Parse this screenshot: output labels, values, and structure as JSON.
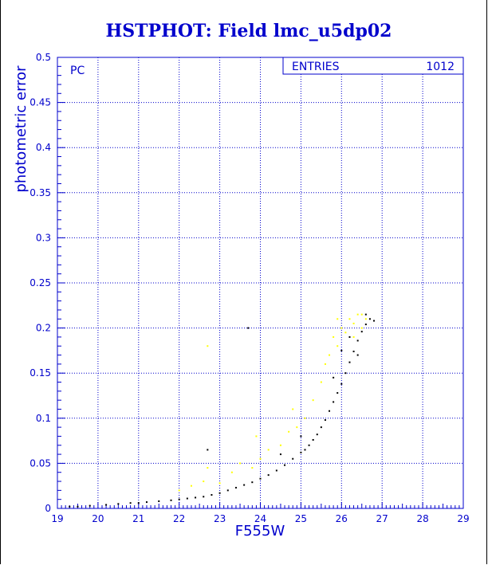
{
  "chart_data": {
    "type": "scatter",
    "title": "HSTPHOT: Field lmc_u5dp02",
    "xlabel": "F555W",
    "ylabel": "photometric error",
    "xlim": [
      19,
      29
    ],
    "ylim": [
      0,
      0.5
    ],
    "x_ticks": [
      "19",
      "20",
      "21",
      "22",
      "23",
      "24",
      "25",
      "26",
      "27",
      "28",
      "29"
    ],
    "y_ticks": [
      "0",
      "0.05",
      "0.1",
      "0.15",
      "0.2",
      "0.25",
      "0.3",
      "0.35",
      "0.4",
      "0.45",
      "0.5"
    ],
    "grid": true,
    "corner_label": "PC",
    "stats_box": {
      "label": "ENTRIES",
      "value": "1012"
    },
    "colors": {
      "axis": "#0000cc",
      "grid": "#0000cc",
      "series_main": "#000000",
      "series_secondary": "#ffff00"
    },
    "series": [
      {
        "color": "#000000",
        "x": [
          19.3,
          19.5,
          19.8,
          20.2,
          20.5,
          20.8,
          21.0,
          21.2,
          21.5,
          21.8,
          22.0,
          22.2,
          22.4,
          22.6,
          22.8,
          23.0,
          23.2,
          23.4,
          23.6,
          23.8,
          24.0,
          24.2,
          24.4,
          24.6,
          24.8,
          25.0,
          25.1,
          25.2,
          25.3,
          25.4,
          25.5,
          25.6,
          25.7,
          25.8,
          25.9,
          26.0,
          26.1,
          26.2,
          26.3,
          26.4,
          26.5,
          26.6,
          26.7,
          26.8,
          22.7,
          23.7,
          24.5,
          25.0,
          26.2,
          26.0,
          25.8,
          26.4,
          26.6
        ],
        "y": [
          0.002,
          0.002,
          0.003,
          0.004,
          0.005,
          0.006,
          0.006,
          0.007,
          0.008,
          0.009,
          0.01,
          0.011,
          0.012,
          0.013,
          0.015,
          0.017,
          0.02,
          0.023,
          0.026,
          0.029,
          0.033,
          0.037,
          0.042,
          0.048,
          0.055,
          0.062,
          0.065,
          0.07,
          0.076,
          0.082,
          0.09,
          0.098,
          0.108,
          0.118,
          0.128,
          0.138,
          0.15,
          0.162,
          0.174,
          0.186,
          0.196,
          0.204,
          0.21,
          0.208,
          0.065,
          0.2,
          0.06,
          0.08,
          0.19,
          0.175,
          0.145,
          0.17,
          0.215
        ]
      },
      {
        "color": "#ffff00",
        "x": [
          22.0,
          22.3,
          22.6,
          22.7,
          23.0,
          23.3,
          23.5,
          23.8,
          24.0,
          24.2,
          24.5,
          24.7,
          24.9,
          25.1,
          25.3,
          25.5,
          25.7,
          25.8,
          25.9,
          26.0,
          26.1,
          26.2,
          26.3,
          26.4,
          26.5,
          26.6,
          22.7,
          23.9,
          24.8,
          25.6,
          25.9,
          26.3,
          26.5
        ],
        "y": [
          0.02,
          0.025,
          0.03,
          0.18,
          0.028,
          0.04,
          0.05,
          0.045,
          0.055,
          0.065,
          0.07,
          0.085,
          0.09,
          0.1,
          0.12,
          0.14,
          0.17,
          0.19,
          0.18,
          0.2,
          0.195,
          0.21,
          0.205,
          0.215,
          0.2,
          0.21,
          0.045,
          0.08,
          0.11,
          0.16,
          0.21,
          0.19,
          0.215
        ]
      }
    ]
  }
}
